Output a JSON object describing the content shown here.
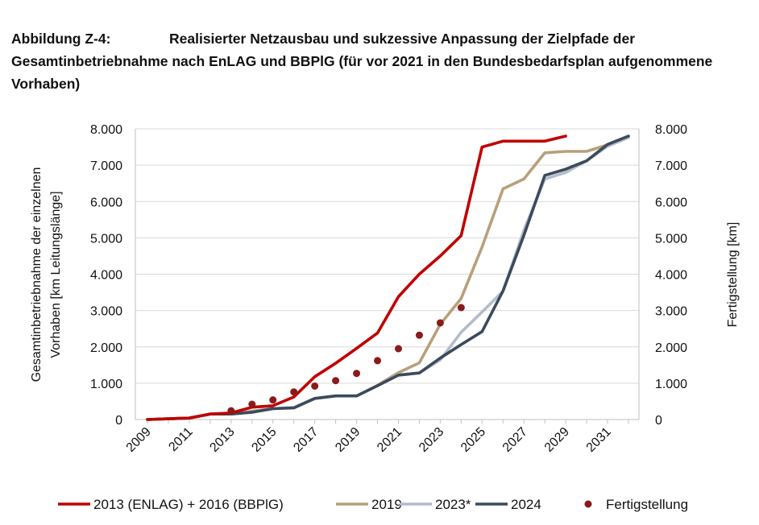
{
  "caption": {
    "label": "Abbildung Z-4:",
    "text": "Realisierter Netzausbau und sukzessive Anpassung der Zielpfade der Gesamtinbetriebnahme nach EnLAG und BBPlG (für vor 2021 in den Bundesbedarfsplan aufgenommene Vorhaben)"
  },
  "chart_data": {
    "type": "line",
    "title": "",
    "ylabel": "Gesamtinbetriebnahme der einzelnen Vorhaben [km Leitungslänge]",
    "ylabel_line1": "Gesamtinbetriebnahme der einzelnen",
    "ylabel_line2": "Vorhaben [km Leitungslänge]",
    "y2label": "Fertigstellung [km]",
    "xlabel": "",
    "xlim": [
      2009,
      2032
    ],
    "ylim": [
      0,
      8000
    ],
    "y2lim": [
      0,
      8000
    ],
    "x_ticks": [
      "2009",
      "2011",
      "2013",
      "2015",
      "2017",
      "2019",
      "2021",
      "2023",
      "2025",
      "2027",
      "2029",
      "2031"
    ],
    "y_ticks": [
      "0",
      "1.000",
      "2.000",
      "3.000",
      "4.000",
      "5.000",
      "6.000",
      "7.000",
      "8.000"
    ],
    "y_tick_values": [
      0,
      1000,
      2000,
      3000,
      4000,
      5000,
      6000,
      7000,
      8000
    ],
    "grid": "horizontal",
    "legend_position": "bottom",
    "series": [
      {
        "name": "2013 (ENLAG) + 2016 (BBPlG)",
        "color": "#c00000",
        "marker": "line",
        "points": [
          [
            2009,
            0
          ],
          [
            2010,
            20
          ],
          [
            2011,
            40
          ],
          [
            2012,
            150
          ],
          [
            2013,
            180
          ],
          [
            2014,
            340
          ],
          [
            2015,
            380
          ],
          [
            2016,
            620
          ],
          [
            2017,
            1180
          ],
          [
            2018,
            1550
          ],
          [
            2019,
            1960
          ],
          [
            2020,
            2380
          ],
          [
            2021,
            3380
          ],
          [
            2022,
            4000
          ],
          [
            2023,
            4500
          ],
          [
            2024,
            5060
          ],
          [
            2025,
            7500
          ],
          [
            2026,
            7660
          ],
          [
            2027,
            7660
          ],
          [
            2028,
            7660
          ],
          [
            2029,
            7800
          ]
        ]
      },
      {
        "name": "2019",
        "color": "#b7a07a",
        "marker": "line",
        "points": [
          [
            2009,
            0
          ],
          [
            2010,
            20
          ],
          [
            2011,
            40
          ],
          [
            2012,
            150
          ],
          [
            2013,
            150
          ],
          [
            2014,
            230
          ],
          [
            2015,
            300
          ],
          [
            2016,
            330
          ],
          [
            2017,
            580
          ],
          [
            2018,
            650
          ],
          [
            2019,
            650
          ],
          [
            2020,
            940
          ],
          [
            2021,
            1290
          ],
          [
            2022,
            1560
          ],
          [
            2023,
            2620
          ],
          [
            2024,
            3330
          ],
          [
            2025,
            4750
          ],
          [
            2026,
            6350
          ],
          [
            2027,
            6620
          ],
          [
            2028,
            7340
          ],
          [
            2029,
            7380
          ],
          [
            2030,
            7380
          ],
          [
            2031,
            7560
          ],
          [
            2032,
            7790
          ]
        ]
      },
      {
        "name": "2023*",
        "color": "#b4bccb",
        "marker": "line",
        "points": [
          [
            2009,
            0
          ],
          [
            2010,
            20
          ],
          [
            2011,
            40
          ],
          [
            2012,
            150
          ],
          [
            2013,
            150
          ],
          [
            2014,
            200
          ],
          [
            2015,
            300
          ],
          [
            2016,
            330
          ],
          [
            2017,
            580
          ],
          [
            2018,
            650
          ],
          [
            2019,
            650
          ],
          [
            2020,
            930
          ],
          [
            2021,
            1230
          ],
          [
            2022,
            1280
          ],
          [
            2023,
            1640
          ],
          [
            2024,
            2400
          ],
          [
            2025,
            2960
          ],
          [
            2026,
            3530
          ],
          [
            2027,
            5210
          ],
          [
            2028,
            6620
          ],
          [
            2029,
            6800
          ],
          [
            2030,
            7120
          ],
          [
            2031,
            7520
          ],
          [
            2032,
            7760
          ]
        ]
      },
      {
        "name": "2024",
        "color": "#3b4a5c",
        "marker": "line",
        "points": [
          [
            2009,
            0
          ],
          [
            2010,
            20
          ],
          [
            2011,
            40
          ],
          [
            2012,
            150
          ],
          [
            2013,
            150
          ],
          [
            2014,
            200
          ],
          [
            2015,
            300
          ],
          [
            2016,
            320
          ],
          [
            2017,
            580
          ],
          [
            2018,
            650
          ],
          [
            2019,
            650
          ],
          [
            2020,
            930
          ],
          [
            2021,
            1220
          ],
          [
            2022,
            1280
          ],
          [
            2023,
            1690
          ],
          [
            2024,
            2060
          ],
          [
            2025,
            2420
          ],
          [
            2026,
            3540
          ],
          [
            2027,
            5070
          ],
          [
            2028,
            6720
          ],
          [
            2029,
            6890
          ],
          [
            2030,
            7120
          ],
          [
            2031,
            7570
          ],
          [
            2032,
            7800
          ]
        ]
      },
      {
        "name": "Fertigstellung",
        "color": "#8b1a1a",
        "marker": "dot",
        "points": [
          [
            2013,
            240
          ],
          [
            2014,
            420
          ],
          [
            2015,
            540
          ],
          [
            2016,
            760
          ],
          [
            2017,
            920
          ],
          [
            2018,
            1070
          ],
          [
            2019,
            1270
          ],
          [
            2020,
            1620
          ],
          [
            2021,
            1950
          ],
          [
            2022,
            2320
          ],
          [
            2023,
            2660
          ],
          [
            2024,
            3080
          ]
        ]
      }
    ]
  }
}
